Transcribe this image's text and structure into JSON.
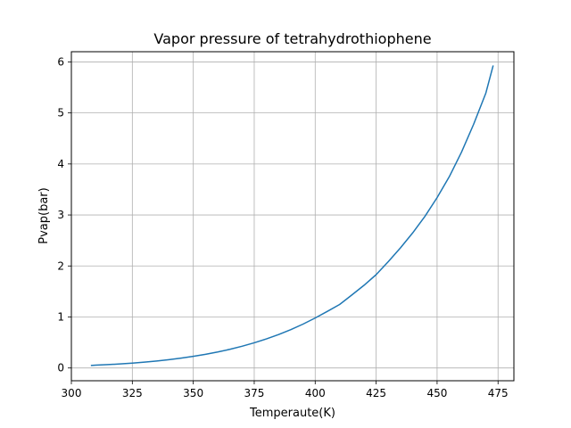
{
  "chart_data": {
    "type": "line",
    "title": "Vapor pressure of tetrahydrothiophene",
    "xlabel": "Temperaute(K)",
    "ylabel": "Pvap(bar)",
    "xlim": [
      300,
      481.5
    ],
    "ylim": [
      -0.25,
      6.2
    ],
    "xticks": [
      300,
      325,
      350,
      375,
      400,
      425,
      450,
      475
    ],
    "yticks": [
      0,
      1,
      2,
      3,
      4,
      5,
      6
    ],
    "grid": true,
    "line_color": "#1f77b4",
    "series": [
      {
        "x": [
          308,
          310,
          315,
          320,
          325,
          330,
          335,
          340,
          345,
          350,
          355,
          360,
          365,
          370,
          375,
          380,
          385,
          390,
          395,
          400,
          405,
          410,
          415,
          420,
          425,
          430,
          435,
          440,
          445,
          450,
          455,
          460,
          465,
          470,
          473
        ],
        "y": [
          0.05,
          0.055,
          0.066,
          0.08,
          0.096,
          0.115,
          0.137,
          0.163,
          0.193,
          0.228,
          0.268,
          0.314,
          0.366,
          0.426,
          0.494,
          0.57,
          0.656,
          0.752,
          0.86,
          0.98,
          1.11,
          1.245,
          1.43,
          1.62,
          1.83,
          2.085,
          2.356,
          2.649,
          2.972,
          3.34,
          3.75,
          4.23,
          4.78,
          5.39,
          5.93
        ]
      }
    ]
  }
}
